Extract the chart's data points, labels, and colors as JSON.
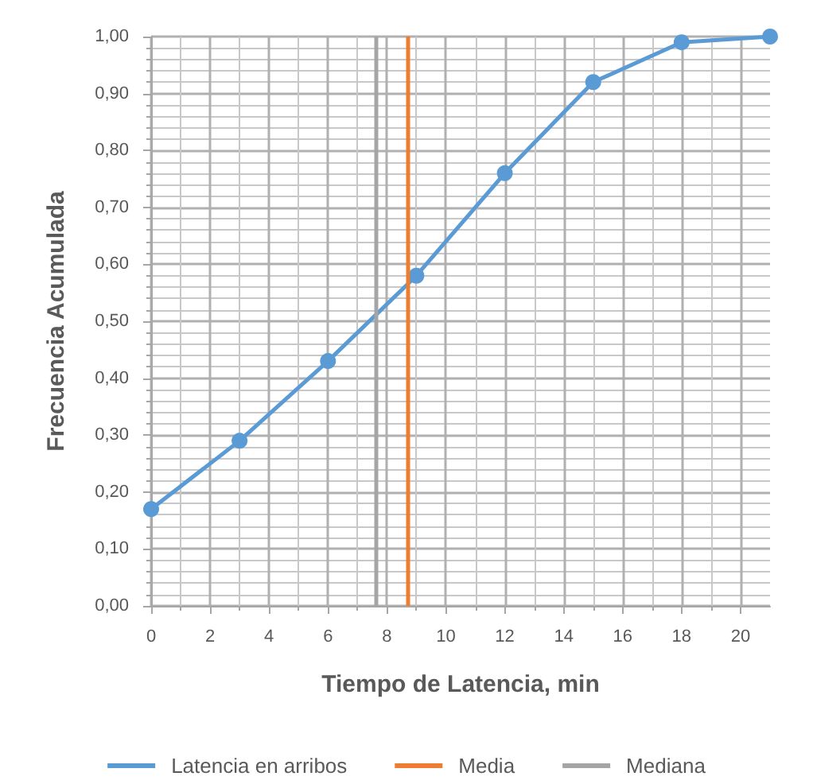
{
  "chart_data": {
    "type": "line",
    "xlabel": "Tiempo de Latencia, min",
    "ylabel": "Frecuencia Acumulada",
    "x": [
      0,
      3,
      6,
      9,
      12,
      15,
      18,
      21
    ],
    "series": [
      {
        "name": "Latencia en arribos",
        "color": "#5b9bd5",
        "values": [
          0.17,
          0.29,
          0.43,
          0.58,
          0.76,
          0.92,
          0.99,
          1.0
        ]
      }
    ],
    "xlim": [
      0,
      21
    ],
    "xticks": [
      0,
      2,
      4,
      6,
      8,
      10,
      12,
      14,
      16,
      18,
      20
    ],
    "ylim": [
      0,
      1
    ],
    "yticks": [
      {
        "value": 0,
        "label": "0,00"
      },
      {
        "value": 0.1,
        "label": "0,10"
      },
      {
        "value": 0.2,
        "label": "0,20"
      },
      {
        "value": 0.3,
        "label": "0,30"
      },
      {
        "value": 0.4,
        "label": "0,40"
      },
      {
        "value": 0.5,
        "label": "0,50"
      },
      {
        "value": 0.6,
        "label": "0,60"
      },
      {
        "value": 0.7,
        "label": "0,70"
      },
      {
        "value": 0.8,
        "label": "0,80"
      },
      {
        "value": 0.9,
        "label": "0,90"
      },
      {
        "value": 1,
        "label": "1,00"
      }
    ],
    "ref_lines": [
      {
        "axis": "x",
        "value": 8.7,
        "label": "Media",
        "color": "#ed7d31"
      },
      {
        "axis": "x",
        "value": 7.6,
        "label": "Mediana",
        "color": "#a5a5a5"
      }
    ],
    "grid": true,
    "legend": "bottom",
    "marker": "circle",
    "line_style": "solid"
  }
}
